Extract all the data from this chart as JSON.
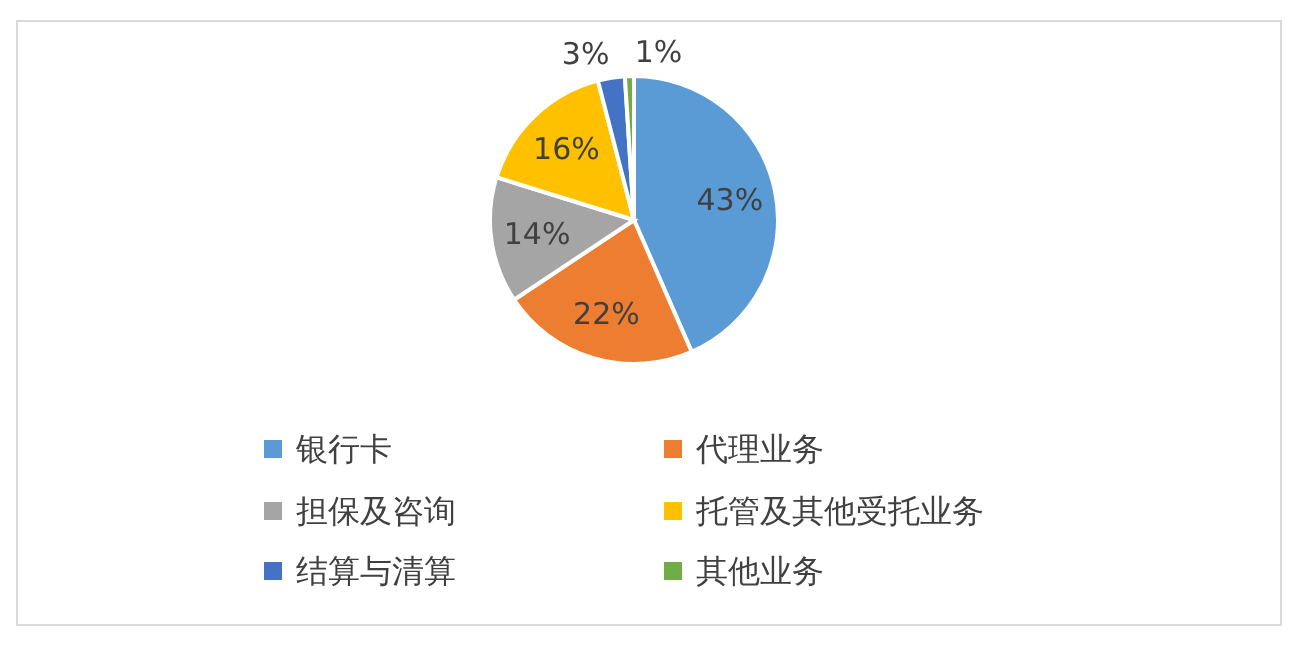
{
  "chart_data": {
    "type": "pie",
    "categories": [
      "银行卡",
      "代理业务",
      "担保及咨询",
      "托管及其他受托业务",
      "结算与清算",
      "其他业务"
    ],
    "values": [
      43,
      22,
      14,
      16,
      3,
      1
    ],
    "colors": [
      "#5b9bd5",
      "#ed7d31",
      "#a5a5a5",
      "#ffc000",
      "#4472c4",
      "#70ad47"
    ],
    "value_labels": [
      "43%",
      "22%",
      "14%",
      "16%",
      "3%",
      "1%"
    ],
    "legend": "bottom"
  }
}
